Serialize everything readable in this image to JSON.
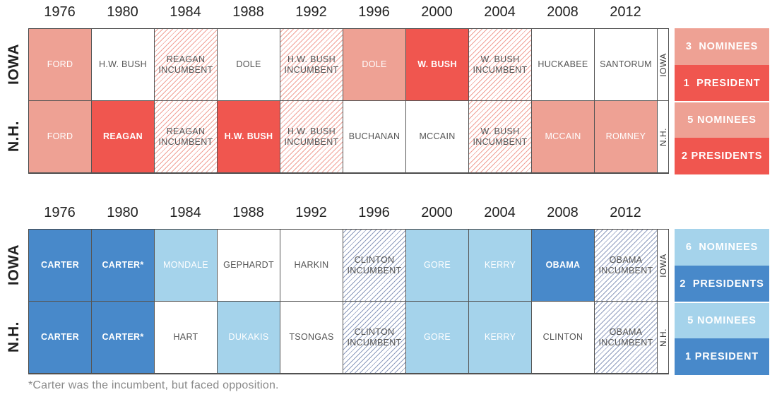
{
  "colors": {
    "rep_dark": "#F0564F",
    "rep_light": "#EEA194",
    "rep_hatch": "#F1A096",
    "dem_dark": "#4889CA",
    "dem_light": "#A5D3EB",
    "dem_hatch": "#8E9CBE",
    "white": "#FFFFFF"
  },
  "chart_data": [
    {
      "type": "table",
      "party": "Republican",
      "columns": [
        "1976",
        "1980",
        "1984",
        "1988",
        "1992",
        "1996",
        "2000",
        "2004",
        "2008",
        "2012"
      ],
      "rows": [
        {
          "label": "IOWA",
          "side_label": "IOWA",
          "cells": [
            {
              "text": "FORD",
              "status": "nominee"
            },
            {
              "text": "H.W. BUSH",
              "status": "none"
            },
            {
              "text": "REAGAN\nINCUMBENT",
              "status": "incumbent"
            },
            {
              "text": "DOLE",
              "status": "none"
            },
            {
              "text": "H.W. BUSH\nINCUMBENT",
              "status": "incumbent"
            },
            {
              "text": "DOLE",
              "status": "nominee"
            },
            {
              "text": "W. BUSH",
              "status": "president"
            },
            {
              "text": "W. BUSH\nINCUMBENT",
              "status": "incumbent"
            },
            {
              "text": "HUCKABEE",
              "status": "none"
            },
            {
              "text": "SANTORUM",
              "status": "none"
            }
          ],
          "summary": [
            {
              "text": "3  NOMINEES",
              "tone": "light"
            },
            {
              "text": "1  PRESIDENT",
              "tone": "dark"
            }
          ]
        },
        {
          "label": "N.H.",
          "side_label": "N.H.",
          "cells": [
            {
              "text": "FORD",
              "status": "nominee"
            },
            {
              "text": "REAGAN",
              "status": "president"
            },
            {
              "text": "REAGAN\nINCUMBENT",
              "status": "incumbent"
            },
            {
              "text": "H.W. BUSH",
              "status": "president"
            },
            {
              "text": "H.W. BUSH\nINCUMBENT",
              "status": "incumbent"
            },
            {
              "text": "BUCHANAN",
              "status": "none"
            },
            {
              "text": "MCCAIN",
              "status": "none"
            },
            {
              "text": "W. BUSH\nINCUMBENT",
              "status": "incumbent"
            },
            {
              "text": "MCCAIN",
              "status": "nominee"
            },
            {
              "text": "ROMNEY",
              "status": "nominee"
            }
          ],
          "summary": [
            {
              "text": "5 NOMINEES",
              "tone": "light"
            },
            {
              "text": "2 PRESIDENTS",
              "tone": "dark"
            }
          ]
        }
      ]
    },
    {
      "type": "table",
      "party": "Democratic",
      "columns": [
        "1976",
        "1980",
        "1984",
        "1988",
        "1992",
        "1996",
        "2000",
        "2004",
        "2008",
        "2012"
      ],
      "rows": [
        {
          "label": "IOWA",
          "side_label": "IOWA",
          "cells": [
            {
              "text": "CARTER",
              "status": "president"
            },
            {
              "text": "CARTER*",
              "status": "president"
            },
            {
              "text": "MONDALE",
              "status": "nominee"
            },
            {
              "text": "GEPHARDT",
              "status": "none"
            },
            {
              "text": "HARKIN",
              "status": "none"
            },
            {
              "text": "CLINTON\nINCUMBENT",
              "status": "incumbent"
            },
            {
              "text": "GORE",
              "status": "nominee"
            },
            {
              "text": "KERRY",
              "status": "nominee"
            },
            {
              "text": "OBAMA",
              "status": "president"
            },
            {
              "text": "OBAMA\nINCUMBENT",
              "status": "incumbent"
            }
          ],
          "summary": [
            {
              "text": "6  NOMINEES",
              "tone": "light"
            },
            {
              "text": "2  PRESIDENTS",
              "tone": "dark"
            }
          ]
        },
        {
          "label": "N.H.",
          "side_label": "N.H.",
          "cells": [
            {
              "text": "CARTER",
              "status": "president"
            },
            {
              "text": "CARTER*",
              "status": "president"
            },
            {
              "text": "HART",
              "status": "none"
            },
            {
              "text": "DUKAKIS",
              "status": "nominee"
            },
            {
              "text": "TSONGAS",
              "status": "none"
            },
            {
              "text": "CLINTON\nINCUMBENT",
              "status": "incumbent"
            },
            {
              "text": "GORE",
              "status": "nominee"
            },
            {
              "text": "KERRY",
              "status": "nominee"
            },
            {
              "text": "CLINTON",
              "status": "none"
            },
            {
              "text": "OBAMA\nINCUMBENT",
              "status": "incumbent"
            }
          ],
          "summary": [
            {
              "text": "5 NOMINEES",
              "tone": "light"
            },
            {
              "text": "1 PRESIDENT",
              "tone": "dark"
            }
          ]
        }
      ]
    }
  ],
  "footnote": "*Carter was the incumbent, but faced opposition."
}
